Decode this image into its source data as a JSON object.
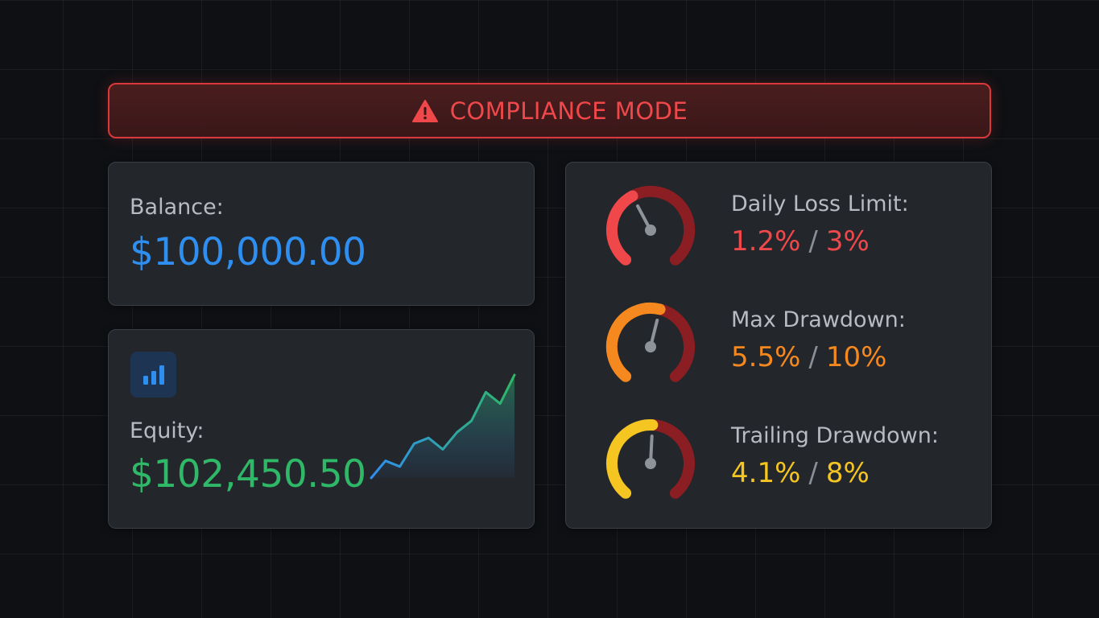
{
  "banner": {
    "title": "COMPLIANCE MODE",
    "icon": "warning-icon",
    "color": "#f0484a"
  },
  "balance": {
    "label": "Balance:",
    "value": "$100,000.00",
    "color": "#2f8ff0"
  },
  "equity": {
    "label": "Equity:",
    "value": "$102,450.50",
    "color": "#2fb867",
    "icon": "bar-chart-icon",
    "trend": [
      3,
      6,
      5,
      9,
      10,
      8,
      11,
      13,
      18,
      16,
      21
    ]
  },
  "risk": [
    {
      "label": "Daily Loss Limit:",
      "current": "1.2%",
      "separator": "/",
      "limit": "3%",
      "color": "#f0484a",
      "level": 0.4
    },
    {
      "label": "Max Drawdown:",
      "current": "5.5%",
      "separator": "/",
      "limit": "10%",
      "color": "#f5891f",
      "level": 0.55
    },
    {
      "label": "Trailing Drawdown:",
      "current": "4.1%",
      "separator": "/",
      "limit": "8%",
      "color": "#f5c522",
      "level": 0.51
    }
  ]
}
